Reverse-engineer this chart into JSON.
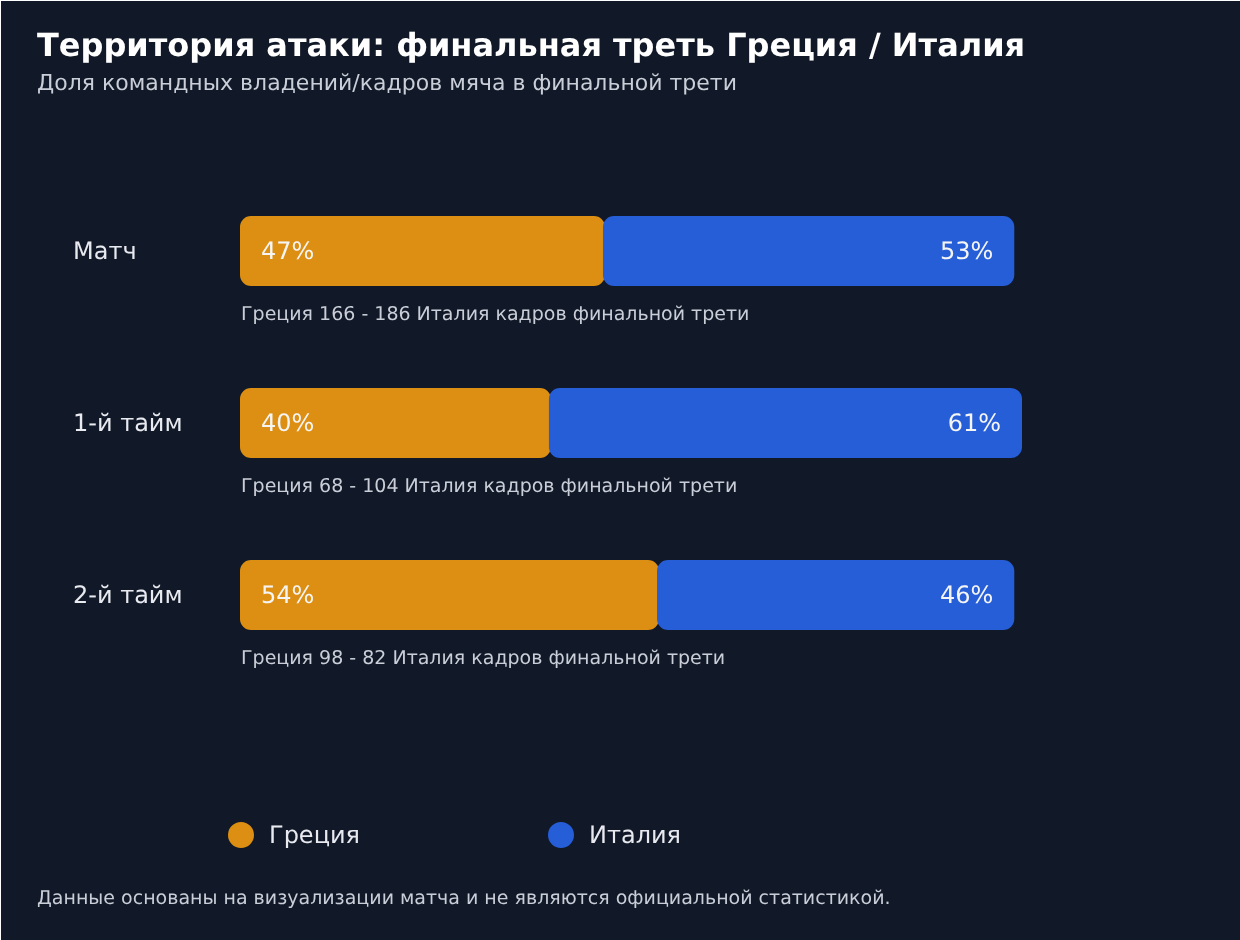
{
  "chart_data": {
    "type": "bar",
    "orientation": "horizontal",
    "stacked": true,
    "title": "Территория атаки: финальная треть Греция / Италия",
    "subtitle": "Доля командных владений/кадров мяча в финальной трети",
    "categories": [
      "Матч",
      "1-й тайм",
      "2-й тайм"
    ],
    "series": [
      {
        "name": "Греция",
        "color": "#dc8f12",
        "values": [
          47,
          40,
          54
        ],
        "value_labels": [
          "47%",
          "40%",
          "54%"
        ]
      },
      {
        "name": "Италия",
        "color": "#265ed8",
        "values": [
          53,
          61,
          46
        ],
        "value_labels": [
          "53%",
          "61%",
          "46%"
        ]
      }
    ],
    "xlim": [
      0,
      101
    ],
    "tick_labels": false,
    "grid": false,
    "legend": "bottom",
    "annotations": [
      "Греция 166 - 186 Италия кадров финальной трети",
      "Греция 68 - 104 Италия кадров финальной трети",
      "Греция 98 - 82 Италия кадров финальной трети",
      "Данные основаны на визуализации матча и не являются официальной статистикой."
    ]
  }
}
